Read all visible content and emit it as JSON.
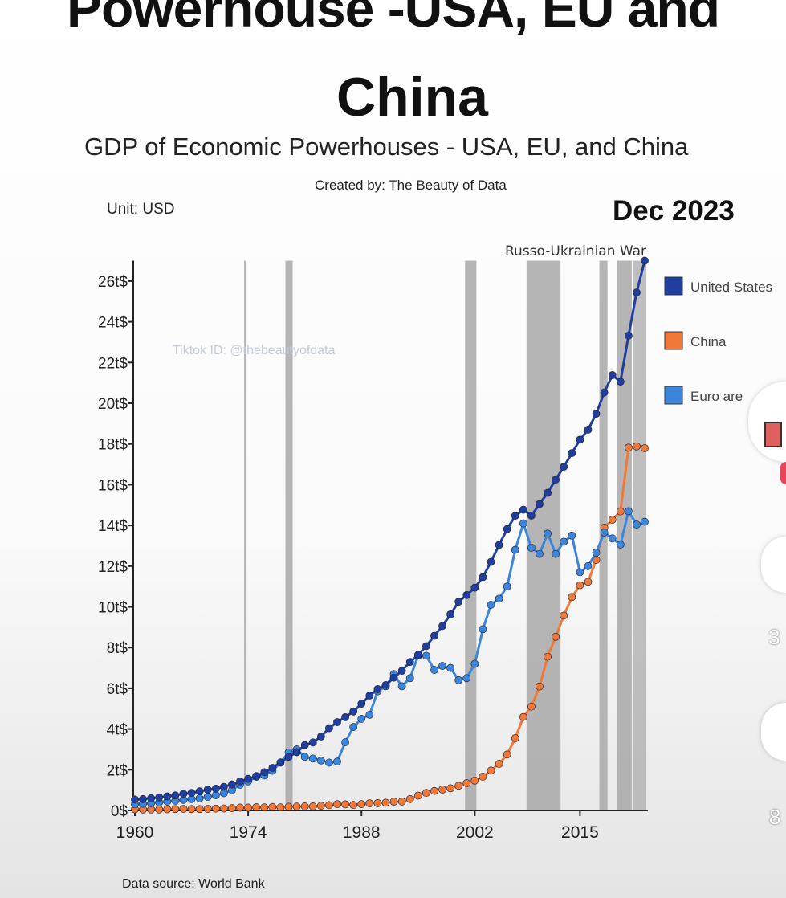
{
  "header": {
    "title_line1": "Powerhouse -USA, EU and",
    "title_line2": "China"
  },
  "chart_data": {
    "type": "line",
    "title": "GDP of Economic Powerhouses - USA, EU, and China",
    "subtitle": "Created by: The Beauty of Data",
    "unit_label": "Unit: USD",
    "date_label": "Dec 2023",
    "watermark": "Tiktok ID: @thebeautyofdata",
    "source": "Data source: World Bank",
    "xlabel": "",
    "ylabel": "",
    "xlim": [
      1960,
      2023
    ],
    "ylim": [
      0,
      27
    ],
    "x_ticks": [
      1960,
      1974,
      1988,
      2002,
      2015
    ],
    "y_ticks": [
      0,
      2,
      4,
      6,
      8,
      10,
      12,
      14,
      16,
      18,
      20,
      22,
      24,
      26
    ],
    "y_tick_labels": [
      "0$",
      "2t$",
      "4t$",
      "6t$",
      "8t$",
      "10t$",
      "12t$",
      "14t$",
      "16t$",
      "18t$",
      "20t$",
      "22t$",
      "24t$",
      "26t$"
    ],
    "legend_position": "right",
    "bands": [
      {
        "from": 1973.5,
        "to": 1973.8
      },
      {
        "from": 1978.6,
        "to": 1979.5
      },
      {
        "from": 2000.8,
        "to": 2002.2
      },
      {
        "from": 2008.4,
        "to": 2012.6
      },
      {
        "from": 2017.4,
        "to": 2018.4
      },
      {
        "from": 2019.6,
        "to": 2021.4
      },
      {
        "from": 2021.6,
        "to": 2023.2,
        "label": "Russo-Ukrainian War"
      }
    ],
    "x_start": 1960,
    "series": [
      {
        "name": "United States",
        "color": "#1f3e9e",
        "values": [
          0.54,
          0.56,
          0.6,
          0.64,
          0.69,
          0.74,
          0.82,
          0.86,
          0.94,
          1.02,
          1.07,
          1.16,
          1.28,
          1.43,
          1.55,
          1.69,
          1.88,
          2.09,
          2.36,
          2.63,
          2.86,
          3.21,
          3.34,
          3.63,
          4.04,
          4.34,
          4.58,
          4.86,
          5.24,
          5.64,
          5.96,
          6.16,
          6.52,
          6.86,
          7.29,
          7.64,
          8.07,
          8.58,
          9.06,
          9.63,
          10.25,
          10.58,
          10.94,
          11.46,
          12.21,
          13.04,
          13.82,
          14.47,
          14.77,
          14.48,
          15.05,
          15.6,
          16.25,
          16.88,
          17.55,
          18.21,
          18.7,
          19.48,
          20.53,
          21.38,
          21.06,
          23.32,
          25.44,
          27.0
        ]
      },
      {
        "name": "China",
        "color": "#f07838",
        "values": [
          0.06,
          0.05,
          0.05,
          0.05,
          0.06,
          0.07,
          0.08,
          0.07,
          0.07,
          0.08,
          0.09,
          0.1,
          0.11,
          0.14,
          0.14,
          0.16,
          0.15,
          0.17,
          0.15,
          0.18,
          0.19,
          0.2,
          0.2,
          0.23,
          0.26,
          0.31,
          0.3,
          0.27,
          0.31,
          0.35,
          0.36,
          0.38,
          0.43,
          0.44,
          0.56,
          0.73,
          0.86,
          0.96,
          1.03,
          1.09,
          1.21,
          1.34,
          1.47,
          1.66,
          1.96,
          2.29,
          2.75,
          3.55,
          4.59,
          5.1,
          6.09,
          7.55,
          8.53,
          9.57,
          10.48,
          11.06,
          11.23,
          12.31,
          13.89,
          14.28,
          14.69,
          17.82,
          17.88,
          17.79
        ]
      },
      {
        "name": "Euro area",
        "color": "#3b86dc",
        "values": [
          0.3,
          0.33,
          0.36,
          0.4,
          0.44,
          0.48,
          0.52,
          0.56,
          0.6,
          0.67,
          0.75,
          0.85,
          1.0,
          1.27,
          1.43,
          1.65,
          1.72,
          1.95,
          2.35,
          2.85,
          3.0,
          2.63,
          2.55,
          2.45,
          2.35,
          2.4,
          3.35,
          4.1,
          4.5,
          4.7,
          5.85,
          6.1,
          6.7,
          6.1,
          6.5,
          7.6,
          7.6,
          6.9,
          7.1,
          7.0,
          6.4,
          6.5,
          7.2,
          8.9,
          10.1,
          10.4,
          11.0,
          12.8,
          14.1,
          12.9,
          12.6,
          13.6,
          12.6,
          13.2,
          13.5,
          11.7,
          12.0,
          12.66,
          13.65,
          13.36,
          13.06,
          14.7,
          14.04,
          14.18
        ]
      }
    ],
    "legend_labels": [
      "United States",
      "China",
      "Euro are"
    ]
  },
  "overlay": {
    "like_count": "3",
    "comment_count": "8"
  }
}
